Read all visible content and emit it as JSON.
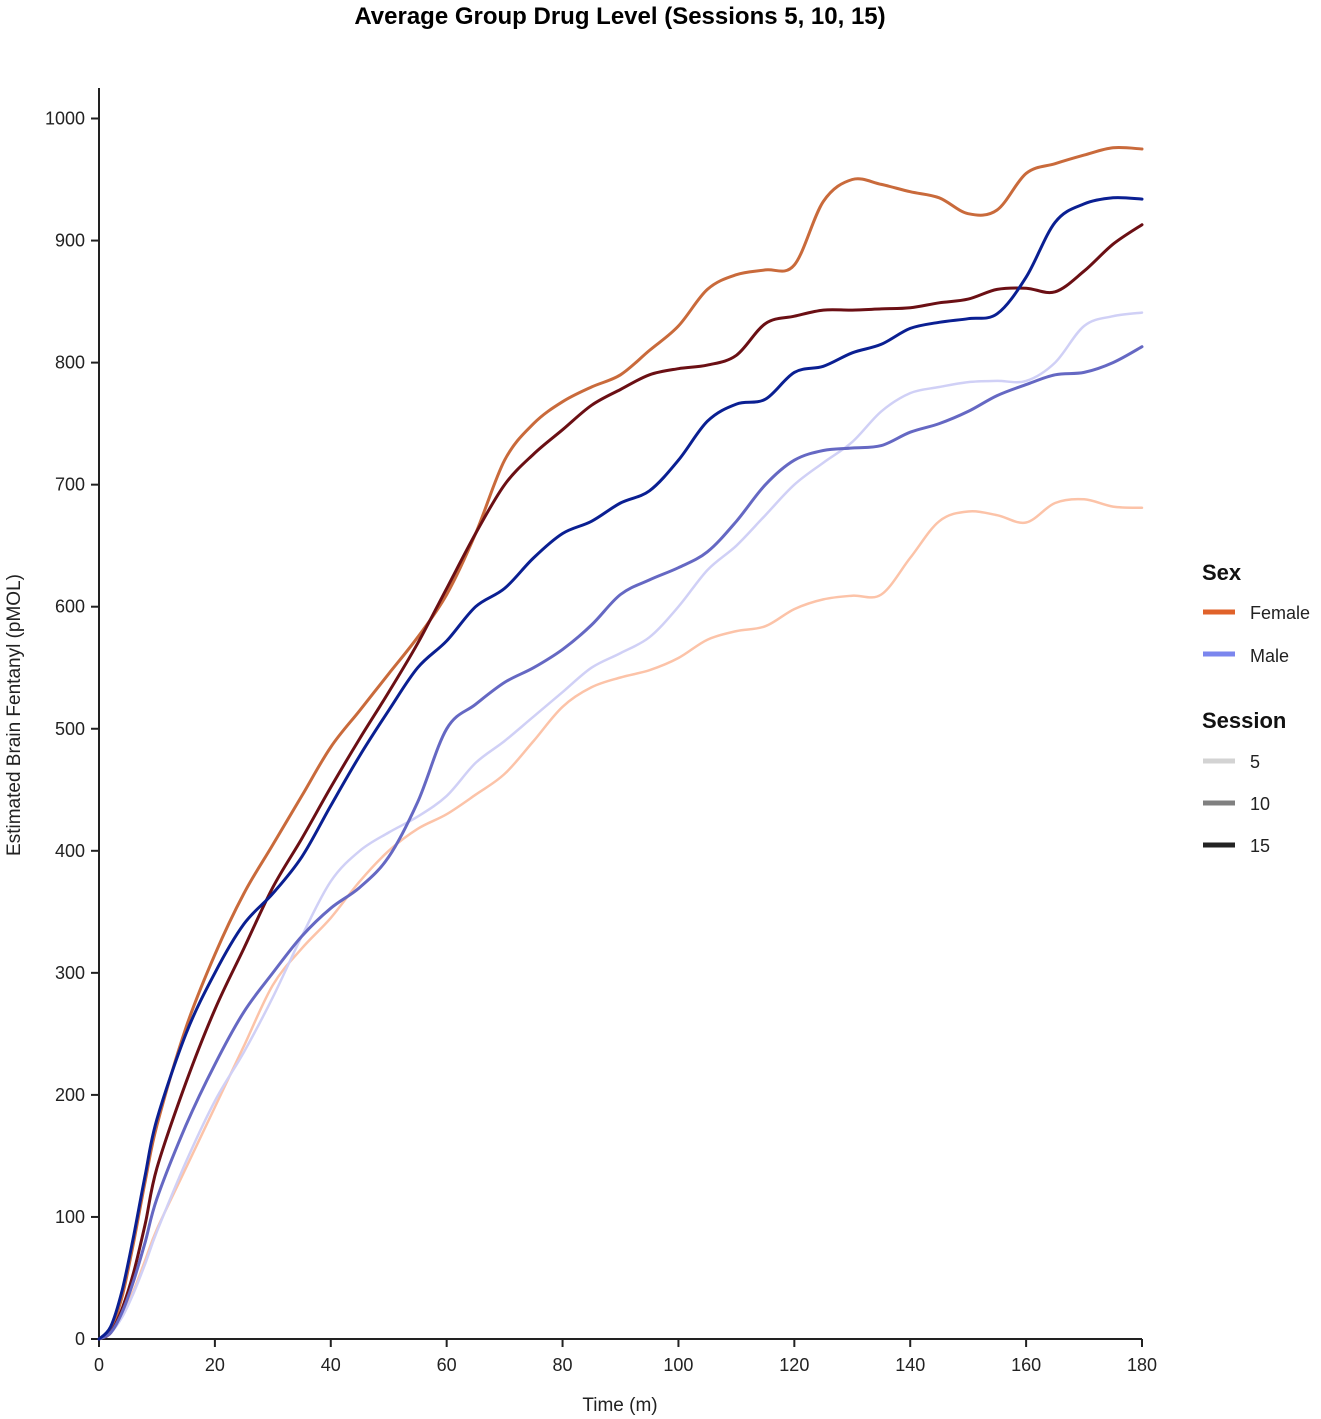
{
  "chart_data": {
    "type": "line",
    "title": "Average Group Drug Level (Sessions 5, 10, 15)",
    "xlabel": "Time (m)",
    "ylabel": "Estimated Brain Fentanyl (pMOL)",
    "xlim": [
      0,
      180
    ],
    "ylim": [
      0,
      1025
    ],
    "xticks": [
      0,
      20,
      40,
      60,
      80,
      100,
      120,
      140,
      160,
      180
    ],
    "yticks": [
      0,
      100,
      200,
      300,
      400,
      500,
      600,
      700,
      800,
      900,
      1000
    ],
    "grid": false,
    "legend_position": "right",
    "legend": {
      "sex_title": "Sex",
      "sex_items": [
        {
          "label": "Female",
          "color": "#e0622a"
        },
        {
          "label": "Male",
          "color": "#7b86ee"
        }
      ],
      "session_title": "Session",
      "session_items": [
        {
          "label": "5",
          "color": "#d3d3d3"
        },
        {
          "label": "10",
          "color": "#808080"
        },
        {
          "label": "15",
          "color": "#232323"
        }
      ]
    },
    "series": [
      {
        "sex": "Female",
        "session": "5",
        "color": "#fcc3a8",
        "width": 2.5,
        "x": [
          0,
          2,
          4,
          6,
          8,
          10,
          15,
          20,
          25,
          30,
          35,
          40,
          45,
          50,
          55,
          60,
          65,
          70,
          75,
          80,
          85,
          90,
          95,
          100,
          105,
          110,
          115,
          120,
          125,
          130,
          135,
          140,
          145,
          150,
          155,
          160,
          165,
          170,
          175,
          180
        ],
        "y": [
          0,
          5,
          20,
          40,
          65,
          90,
          140,
          190,
          240,
          290,
          320,
          345,
          375,
          400,
          418,
          430,
          446,
          463,
          490,
          518,
          534,
          542,
          548,
          558,
          573,
          580,
          584,
          598,
          606,
          609,
          610,
          640,
          670,
          678,
          675,
          669,
          685,
          688,
          682,
          681
        ]
      },
      {
        "sex": "Female",
        "session": "10",
        "color": "#c96a3b",
        "width": 3,
        "x": [
          0,
          2,
          4,
          6,
          8,
          10,
          15,
          20,
          25,
          30,
          35,
          40,
          45,
          50,
          55,
          60,
          65,
          70,
          75,
          80,
          85,
          90,
          95,
          100,
          105,
          110,
          115,
          120,
          125,
          130,
          135,
          140,
          145,
          150,
          155,
          160,
          165,
          170,
          175,
          180
        ],
        "y": [
          0,
          8,
          35,
          80,
          130,
          175,
          255,
          315,
          365,
          405,
          445,
          485,
          515,
          545,
          575,
          610,
          660,
          720,
          750,
          768,
          780,
          790,
          810,
          830,
          860,
          872,
          876,
          880,
          932,
          950,
          946,
          940,
          935,
          922,
          925,
          955,
          963,
          970,
          976,
          975
        ]
      },
      {
        "sex": "Female",
        "session": "15",
        "color": "#6b0f14",
        "width": 3,
        "x": [
          0,
          2,
          4,
          6,
          8,
          10,
          15,
          20,
          25,
          30,
          35,
          40,
          45,
          50,
          55,
          60,
          65,
          70,
          75,
          80,
          85,
          90,
          95,
          100,
          105,
          110,
          115,
          120,
          125,
          130,
          135,
          140,
          145,
          150,
          155,
          160,
          165,
          170,
          175,
          180
        ],
        "y": [
          0,
          5,
          25,
          55,
          95,
          140,
          210,
          270,
          320,
          370,
          410,
          452,
          492,
          530,
          570,
          615,
          660,
          700,
          725,
          745,
          765,
          778,
          790,
          795,
          798,
          806,
          832,
          838,
          843,
          843,
          844,
          845,
          849,
          852,
          860,
          861,
          858,
          875,
          897,
          913
        ]
      },
      {
        "sex": "Male",
        "session": "5",
        "color": "#d0d0f6",
        "width": 2.5,
        "x": [
          0,
          2,
          4,
          6,
          8,
          10,
          15,
          20,
          25,
          30,
          35,
          40,
          45,
          50,
          55,
          60,
          65,
          70,
          75,
          80,
          85,
          90,
          95,
          100,
          105,
          110,
          115,
          120,
          125,
          130,
          135,
          140,
          145,
          150,
          155,
          160,
          165,
          170,
          175,
          180
        ],
        "y": [
          0,
          5,
          18,
          38,
          62,
          88,
          145,
          195,
          235,
          280,
          330,
          375,
          400,
          415,
          428,
          445,
          472,
          490,
          510,
          530,
          550,
          562,
          575,
          600,
          630,
          650,
          675,
          700,
          718,
          735,
          760,
          775,
          780,
          784,
          785,
          785,
          800,
          830,
          838,
          841
        ]
      },
      {
        "sex": "Male",
        "session": "10",
        "color": "#6568c3",
        "width": 3,
        "x": [
          0,
          2,
          4,
          6,
          8,
          10,
          15,
          20,
          25,
          30,
          35,
          40,
          45,
          50,
          55,
          60,
          65,
          70,
          75,
          80,
          85,
          90,
          95,
          100,
          105,
          110,
          115,
          120,
          125,
          130,
          135,
          140,
          145,
          150,
          155,
          160,
          165,
          170,
          175,
          180
        ],
        "y": [
          0,
          5,
          22,
          48,
          80,
          115,
          175,
          225,
          268,
          300,
          330,
          353,
          370,
          395,
          440,
          500,
          520,
          538,
          550,
          565,
          585,
          610,
          622,
          632,
          645,
          670,
          700,
          720,
          728,
          730,
          732,
          743,
          750,
          760,
          773,
          782,
          790,
          792,
          800,
          813
        ]
      },
      {
        "sex": "Male",
        "session": "15",
        "color": "#0a1f92",
        "width": 3,
        "x": [
          0,
          2,
          4,
          6,
          8,
          10,
          15,
          20,
          25,
          30,
          35,
          40,
          45,
          50,
          55,
          60,
          65,
          70,
          75,
          80,
          85,
          90,
          95,
          100,
          105,
          110,
          115,
          120,
          125,
          130,
          135,
          140,
          145,
          150,
          155,
          160,
          165,
          170,
          175,
          180
        ],
        "y": [
          0,
          10,
          40,
          85,
          135,
          180,
          250,
          300,
          340,
          365,
          395,
          437,
          478,
          515,
          550,
          572,
          600,
          615,
          640,
          660,
          670,
          685,
          695,
          720,
          752,
          766,
          770,
          792,
          797,
          808,
          815,
          828,
          833,
          836,
          840,
          870,
          915,
          930,
          935,
          934
        ]
      }
    ]
  }
}
